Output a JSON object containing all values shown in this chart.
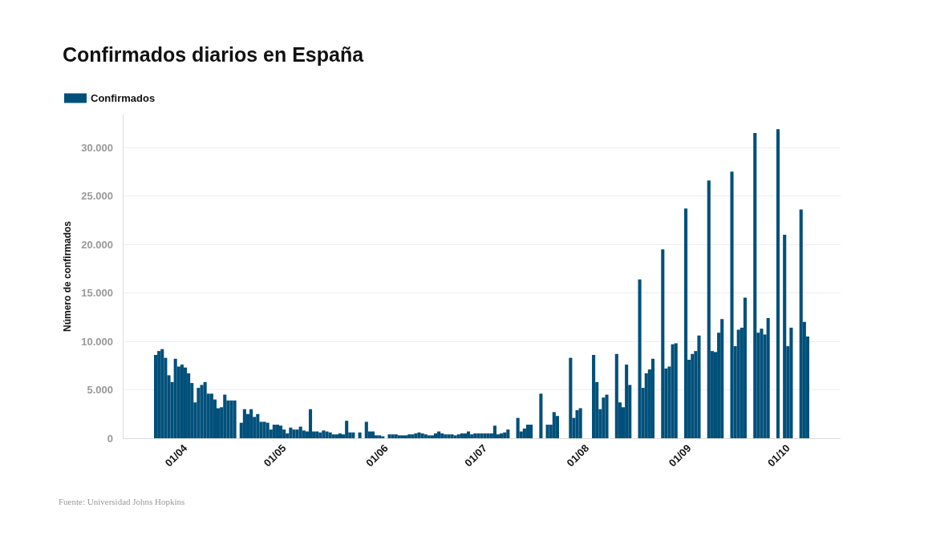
{
  "chart_data": {
    "type": "bar",
    "title": "Confirmados diarios en España",
    "ylabel": "Número de confirmados",
    "annotations": [
      "Fuente: Universidad Johns Hopkins"
    ],
    "legend": "top left",
    "grid": "y",
    "x": [
      "--03-23",
      "--03-24",
      "--03-25",
      "--03-26",
      "--03-27",
      "--03-28",
      "--03-29",
      "--03-30",
      "--03-31",
      "--04-01",
      "--04-02",
      "--04-03",
      "--04-04",
      "--04-05",
      "--04-06",
      "--04-07",
      "--04-08",
      "--04-09",
      "--04-10",
      "--04-11",
      "--04-12",
      "--04-13",
      "--04-14",
      "--04-15",
      "--04-16",
      "--04-17",
      "--04-18",
      "--04-19",
      "--04-20",
      "--04-21",
      "--04-22",
      "--04-23",
      "--04-24",
      "--04-25",
      "--04-26",
      "--04-27",
      "--04-28",
      "--04-29",
      "--04-30",
      "--05-01",
      "--05-02",
      "--05-03",
      "--05-04",
      "--05-05",
      "--05-06",
      "--05-07",
      "--05-08",
      "--05-09",
      "--05-10",
      "--05-11",
      "--05-12",
      "--05-13",
      "--05-14",
      "--05-15",
      "--05-16",
      "--05-17",
      "--05-18",
      "--05-19",
      "--05-20",
      "--05-21",
      "--05-22",
      "--05-23",
      "--05-24",
      "--05-25",
      "--05-26",
      "--05-27",
      "--05-28",
      "--05-29",
      "--05-30",
      "--05-31",
      "--06-01",
      "--06-02",
      "--06-03",
      "--06-04",
      "--06-05",
      "--06-06",
      "--06-07",
      "--06-08",
      "--06-09",
      "--06-10",
      "--06-11",
      "--06-12",
      "--06-13",
      "--06-14",
      "--06-15",
      "--06-16",
      "--06-17",
      "--06-18",
      "--06-19",
      "--06-20",
      "--06-21",
      "--06-22",
      "--06-23",
      "--06-24",
      "--06-25",
      "--06-26",
      "--06-27",
      "--06-28",
      "--06-29",
      "--06-30",
      "--07-01",
      "--07-02",
      "--07-03",
      "--07-04",
      "--07-05",
      "--07-06",
      "--07-07",
      "--07-08",
      "--07-09",
      "--07-10",
      "--07-11",
      "--07-12",
      "--07-13",
      "--07-14",
      "--07-15",
      "--07-16",
      "--07-17",
      "--07-18",
      "--07-19",
      "--07-20",
      "--07-21",
      "--07-22",
      "--07-23",
      "--07-24",
      "--07-25",
      "--07-26",
      "--07-27",
      "--07-28",
      "--07-29",
      "--07-30",
      "--07-31",
      "--08-01",
      "--08-02",
      "--08-03",
      "--08-04",
      "--08-05",
      "--08-06",
      "--08-07",
      "--08-08",
      "--08-09",
      "--08-10",
      "--08-11",
      "--08-12",
      "--08-13",
      "--08-14",
      "--08-15",
      "--08-16",
      "--08-17",
      "--08-18",
      "--08-19",
      "--08-20",
      "--08-21",
      "--08-22",
      "--08-23",
      "--08-24",
      "--08-25",
      "--08-26",
      "--08-27",
      "--08-28",
      "--08-29",
      "--08-30",
      "--08-31",
      "--09-01",
      "--09-02",
      "--09-03",
      "--09-04",
      "--09-05",
      "--09-06",
      "--09-07",
      "--09-08",
      "--09-09",
      "--09-10",
      "--09-11",
      "--09-12",
      "--09-13",
      "--09-14",
      "--09-15",
      "--09-16",
      "--09-17",
      "--09-18",
      "--09-19",
      "--09-20",
      "--09-21",
      "--09-22",
      "--09-23",
      "--09-24",
      "--09-25",
      "--09-26",
      "--09-27",
      "--09-28",
      "--09-29",
      "--09-30",
      "--10-01",
      "--10-02",
      "--10-03",
      "--10-04",
      "--10-05",
      "--10-06",
      "--10-07"
    ],
    "series": [
      {
        "name": "Confirmados",
        "color": "#00507a",
        "values": [
          8600,
          9000,
          9200,
          8300,
          6500,
          5800,
          8200,
          7400,
          7600,
          7300,
          6700,
          5700,
          3700,
          5200,
          5500,
          5800,
          4600,
          4600,
          4000,
          3100,
          3200,
          4500,
          3900,
          3900,
          3900,
          null,
          1600,
          3000,
          2500,
          3000,
          2200,
          2500,
          1700,
          1700,
          1600,
          900,
          1400,
          1400,
          1300,
          900,
          500,
          1100,
          900,
          900,
          1200,
          800,
          700,
          3000,
          700,
          700,
          600,
          800,
          700,
          600,
          400,
          400,
          500,
          400,
          1800,
          600,
          600,
          null,
          600,
          null,
          1700,
          700,
          700,
          300,
          300,
          200,
          null,
          400,
          400,
          400,
          300,
          300,
          300,
          400,
          400,
          500,
          600,
          500,
          400,
          300,
          300,
          500,
          700,
          500,
          400,
          400,
          400,
          300,
          400,
          500,
          500,
          700,
          400,
          500,
          500,
          500,
          500,
          500,
          500,
          1300,
          400,
          500,
          600,
          900,
          null,
          null,
          2100,
          700,
          1000,
          1400,
          1400,
          null,
          null,
          4600,
          null,
          1400,
          1400,
          2700,
          2300,
          null,
          null,
          null,
          8300,
          2100,
          2900,
          3100,
          null,
          null,
          null,
          8600,
          5800,
          3000,
          4200,
          4500,
          null,
          null,
          8700,
          3700,
          3200,
          7600,
          5500,
          null,
          null,
          16400,
          5200,
          6700,
          7100,
          8200,
          null,
          null,
          19500,
          7200,
          7400,
          9700,
          9800,
          null,
          null,
          23700,
          8100,
          8700,
          9000,
          10600,
          null,
          null,
          26600,
          9000,
          8900,
          10900,
          12300,
          null,
          null,
          27500,
          9500,
          11200,
          11400,
          14500,
          null,
          null,
          31500,
          10900,
          11300,
          10700,
          12400,
          null,
          null,
          31900,
          null,
          21000,
          9500,
          11400,
          null,
          null,
          23600,
          12000,
          10500
        ]
      }
    ],
    "xlim": [
      "--03-13",
      "--10-17"
    ],
    "xticks": [
      {
        "value": "--04-01",
        "label": "01/04"
      },
      {
        "value": "--05-01",
        "label": "01/05"
      },
      {
        "value": "--06-01",
        "label": "01/06"
      },
      {
        "value": "--07-01",
        "label": "01/07"
      },
      {
        "value": "--08-01",
        "label": "01/08"
      },
      {
        "value": "--09-01",
        "label": "01/09"
      },
      {
        "value": "--10-01",
        "label": "01/10"
      }
    ],
    "ylim": [
      0,
      33400
    ],
    "yticks": [
      0,
      {
        "value": 5000,
        "label": "5.000"
      },
      {
        "value": 10000,
        "label": "10.000"
      },
      {
        "value": 15000,
        "label": "15.000"
      },
      {
        "value": 20000,
        "label": "20.000"
      },
      {
        "value": 25000,
        "label": "25.000"
      },
      {
        "value": 30000,
        "label": "30.000"
      }
    ]
  }
}
